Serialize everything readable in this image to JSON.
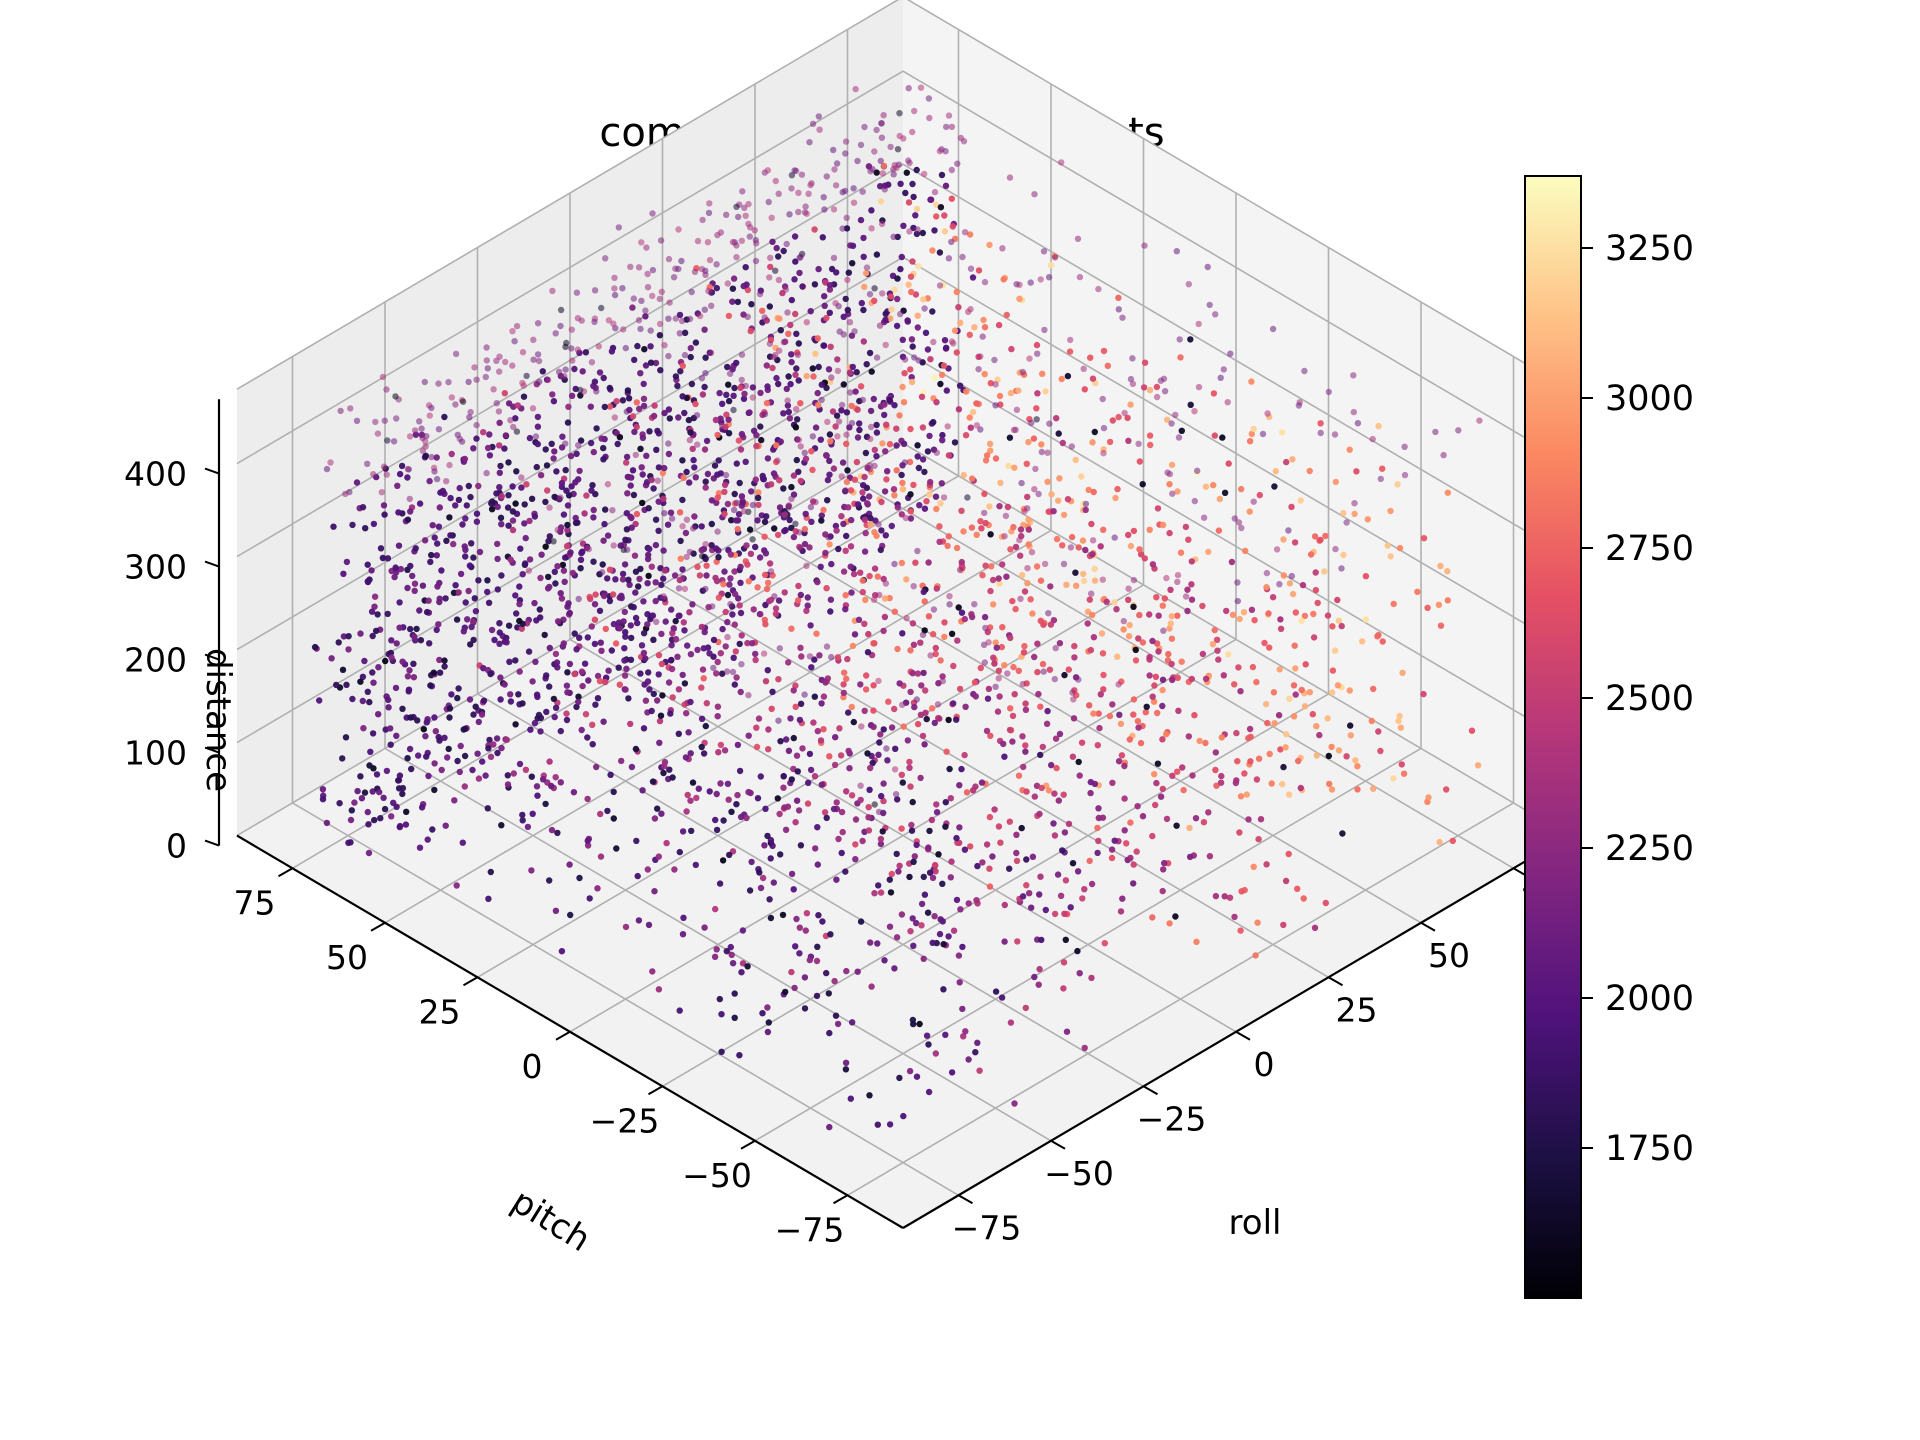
{
  "chart_data": {
    "type": "scatter",
    "dimensions": 3,
    "title": "complete plot: 11754 points",
    "point_count": 11754,
    "xlabel": "roll",
    "ylabel": "pitch",
    "zlabel": "distance",
    "xlim": [
      -90,
      90
    ],
    "ylim": [
      -90,
      90
    ],
    "zlim": [
      0,
      480
    ],
    "xticks": [
      -75,
      -50,
      -25,
      0,
      25,
      50,
      75
    ],
    "yticks": [
      -75,
      -50,
      -25,
      0,
      25,
      50,
      75
    ],
    "zticks": [
      0,
      100,
      200,
      300,
      400
    ],
    "xtick_labels": [
      "−75",
      "−50",
      "−25",
      "0",
      "25",
      "50",
      "75"
    ],
    "ytick_labels": [
      "−75",
      "−50",
      "−25",
      "0",
      "25",
      "50",
      "75"
    ],
    "ztick_labels": [
      "0",
      "100",
      "200",
      "300",
      "400"
    ],
    "view": {
      "elev_deg": 30,
      "azim_deg": 45
    },
    "grid": true,
    "colorbar": {
      "colormap": "magma",
      "range": [
        1500,
        3370
      ],
      "ticks": [
        1750,
        2000,
        2250,
        2500,
        2750,
        3000,
        3250
      ],
      "tick_labels": [
        "1750",
        "2000",
        "2250",
        "2500",
        "2750",
        "3000",
        "3250"
      ],
      "placement": "right"
    },
    "data_extent": {
      "roll": [
        -80,
        80
      ],
      "pitch": [
        -80,
        80
      ],
      "distance": [
        0,
        470
      ],
      "color_value": [
        1500,
        3370
      ]
    },
    "colors": {
      "pane": "#f2f2f2",
      "grid": "#b0b0b0",
      "magma_stops": [
        "#000004",
        "#1c1044",
        "#4f127b",
        "#812581",
        "#b5367a",
        "#e55064",
        "#fb8761",
        "#fec287",
        "#fcfdbf"
      ]
    }
  }
}
